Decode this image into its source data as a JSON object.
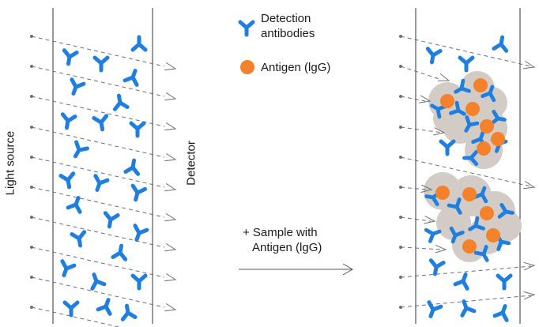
{
  "legend": {
    "antibody_label_line1": "Detection",
    "antibody_label_line2": "antibodies",
    "antigen_label": "Antigen (lgG)"
  },
  "axis_labels": {
    "light_source": "Light source",
    "detector": "Detector"
  },
  "step": {
    "line1": "+ Sample with",
    "line2": "Antigen (lgG)"
  },
  "colors": {
    "antibody": "#1e7fe0",
    "antigen": "#f5822a",
    "complex_halo": "#d2cbc6",
    "beam": "#6f6f6f",
    "border": "#333333"
  },
  "icons": [
    "antibody-y-icon",
    "antigen-dot-icon",
    "arrowhead-icon"
  ]
}
